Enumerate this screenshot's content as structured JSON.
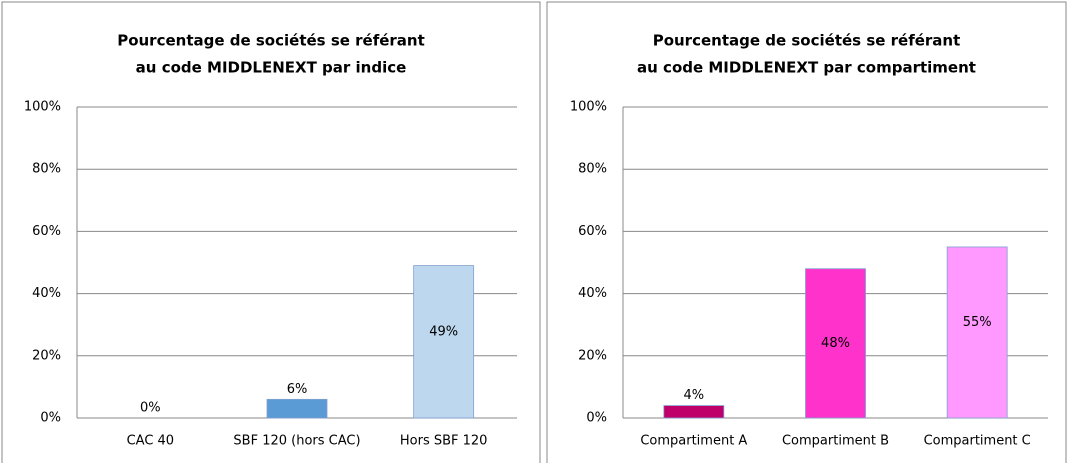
{
  "chart_data": [
    {
      "type": "bar",
      "title": [
        "Pourcentage de sociétés se référant",
        "au code MIDDLENEXT par indice"
      ],
      "categories": [
        "CAC 40",
        "SBF 120 (hors CAC)",
        "Hors SBF 120"
      ],
      "values": [
        0,
        6,
        49
      ],
      "value_labels": [
        "0%",
        "6%",
        "49%"
      ],
      "colors": [
        "#4f81bd",
        "#5b9bd5",
        "#bdd7ee"
      ],
      "ylim": [
        0,
        100
      ],
      "yticks": [
        {
          "value": 0,
          "label": "0%"
        },
        {
          "value": 20,
          "label": "20%"
        },
        {
          "value": 40,
          "label": "40%"
        },
        {
          "value": 60,
          "label": "60%"
        },
        {
          "value": 80,
          "label": "80%"
        },
        {
          "value": 100,
          "label": "100%"
        }
      ],
      "grid": true
    },
    {
      "type": "bar",
      "title": [
        "Pourcentage de sociétés se référant",
        "au code MIDDLENEXT par compartiment"
      ],
      "categories": [
        "Compartiment A",
        "Compartiment B",
        "Compartiment C"
      ],
      "values": [
        4,
        48,
        55
      ],
      "value_labels": [
        "4%",
        "48%",
        "55%"
      ],
      "colors": [
        "#c0006a",
        "#ff33cc",
        "#ff99ff"
      ],
      "ylim": [
        0,
        100
      ],
      "yticks": [
        {
          "value": 0,
          "label": "0%"
        },
        {
          "value": 20,
          "label": "20%"
        },
        {
          "value": 40,
          "label": "40%"
        },
        {
          "value": 60,
          "label": "60%"
        },
        {
          "value": 80,
          "label": "80%"
        },
        {
          "value": 100,
          "label": "100%"
        }
      ],
      "grid": true
    }
  ]
}
